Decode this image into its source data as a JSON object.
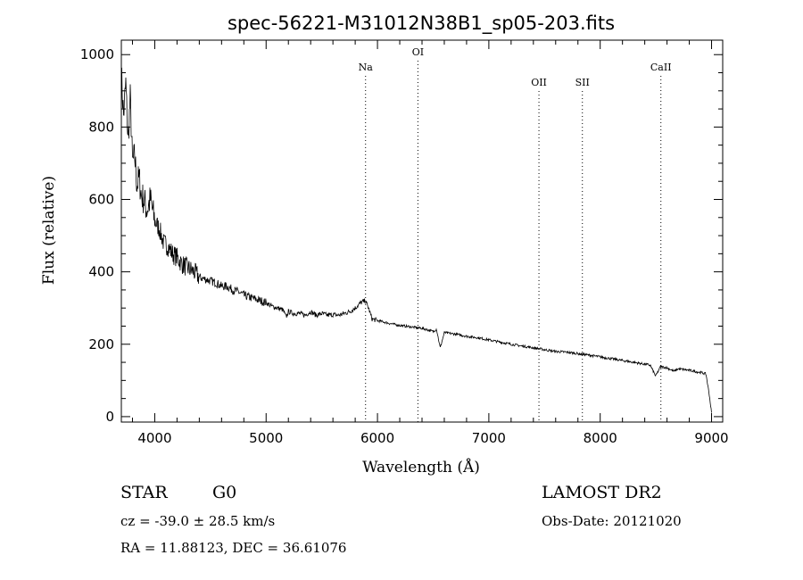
{
  "chart_data": {
    "type": "line",
    "title": "spec-56221-M31012N38B1_sp05-203.fits",
    "xlabel": "Wavelength (Å)",
    "ylabel": "Flux (relative)",
    "xlim": [
      3700,
      9100
    ],
    "ylim": [
      -15,
      1040
    ],
    "x_ticks": [
      4000,
      5000,
      6000,
      7000,
      8000,
      9000
    ],
    "y_ticks": [
      0,
      200,
      400,
      600,
      800,
      1000
    ],
    "grid": false,
    "series": [
      {
        "x": [
          3700,
          3720,
          3740,
          3760,
          3780,
          3800,
          3820,
          3840,
          3860,
          3880,
          3900,
          3930,
          3960,
          4000,
          4040,
          4080,
          4120,
          4160,
          4200,
          4250,
          4300,
          4350,
          4400,
          4450,
          4500,
          4550,
          4600,
          4650,
          4700,
          4750,
          4800,
          4850,
          4900,
          4950,
          5000,
          5050,
          5100,
          5150,
          5180,
          5200,
          5250,
          5300,
          5350,
          5400,
          5450,
          5500,
          5550,
          5600,
          5650,
          5700,
          5750,
          5800,
          5850,
          5890,
          5920,
          5950,
          6000,
          6050,
          6100,
          6150,
          6200,
          6250,
          6300,
          6350,
          6400,
          6450,
          6500,
          6530,
          6563,
          6600,
          6650,
          6700,
          6750,
          6800,
          6850,
          6900,
          6950,
          7000,
          7100,
          7200,
          7300,
          7400,
          7500,
          7600,
          7700,
          7800,
          7900,
          8000,
          8100,
          8200,
          8300,
          8400,
          8450,
          8498,
          8542,
          8600,
          8662,
          8700,
          8800,
          8900,
          8950,
          8980,
          9000
        ],
        "y": [
          950,
          830,
          920,
          760,
          880,
          700,
          720,
          640,
          660,
          610,
          600,
          570,
          600,
          540,
          520,
          480,
          470,
          450,
          440,
          420,
          410,
          400,
          385,
          380,
          375,
          370,
          360,
          360,
          350,
          345,
          335,
          330,
          325,
          320,
          315,
          305,
          300,
          295,
          275,
          290,
          285,
          285,
          280,
          290,
          280,
          285,
          280,
          282,
          280,
          285,
          290,
          300,
          315,
          320,
          300,
          270,
          265,
          262,
          258,
          255,
          252,
          250,
          248,
          246,
          244,
          240,
          235,
          242,
          190,
          232,
          230,
          228,
          225,
          222,
          220,
          218,
          215,
          212,
          206,
          200,
          195,
          190,
          185,
          180,
          178,
          174,
          170,
          165,
          160,
          155,
          150,
          145,
          142,
          112,
          138,
          135,
          125,
          132,
          128,
          122,
          118,
          60,
          10
        ]
      }
    ],
    "lines": [
      {
        "label": "Na",
        "x": 5893
      },
      {
        "label": "OI",
        "x": 6363
      },
      {
        "label": "OII",
        "x": 7450
      },
      {
        "label": "SII",
        "x": 7840
      },
      {
        "label": "CaII",
        "x": 8545
      }
    ]
  },
  "info": {
    "class": "STAR",
    "subclass": "G0",
    "survey": "LAMOST DR2",
    "cz": "cz = -39.0 ± 28.5 km/s",
    "obs_date": "Obs-Date: 20121020",
    "coords": "RA =  11.88123, DEC =  36.61076"
  }
}
